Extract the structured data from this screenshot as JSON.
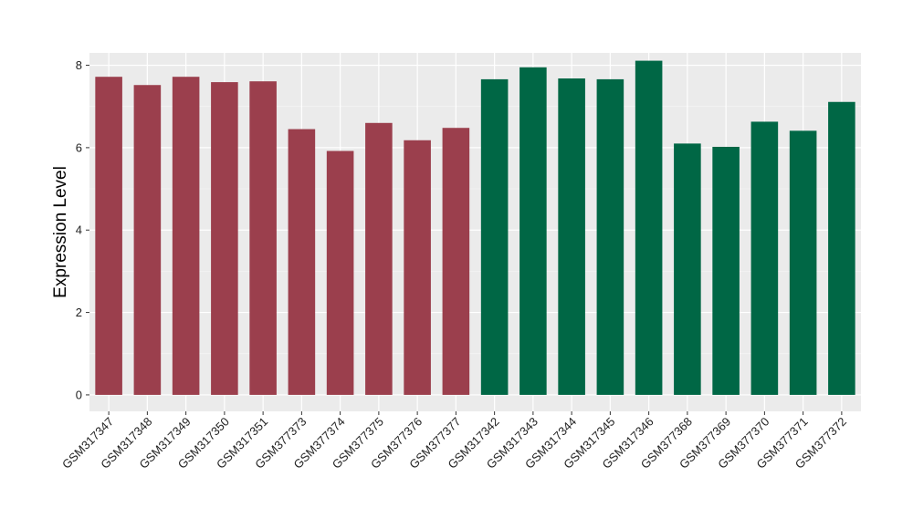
{
  "chart_data": {
    "type": "bar",
    "xlabel": "",
    "ylabel": "Expression Level",
    "ylim": [
      0,
      8.3
    ],
    "yticks": [
      0,
      2,
      4,
      6,
      8
    ],
    "grid": true,
    "panel_background": "#EBEBEB",
    "categories": [
      "GSM317347",
      "GSM317348",
      "GSM317349",
      "GSM317350",
      "GSM317351",
      "GSM377373",
      "GSM377374",
      "GSM377375",
      "GSM377376",
      "GSM377377",
      "GSM317342",
      "GSM317343",
      "GSM317344",
      "GSM317345",
      "GSM317346",
      "GSM377368",
      "GSM377369",
      "GSM377370",
      "GSM377371",
      "GSM377372"
    ],
    "values": [
      7.72,
      7.52,
      7.72,
      7.59,
      7.61,
      6.45,
      5.92,
      6.6,
      6.18,
      6.48,
      7.66,
      7.95,
      7.68,
      7.66,
      8.11,
      6.1,
      6.02,
      6.63,
      6.41,
      7.11
    ],
    "colors": [
      "#9B3F4D",
      "#9B3F4D",
      "#9B3F4D",
      "#9B3F4D",
      "#9B3F4D",
      "#9B3F4D",
      "#9B3F4D",
      "#9B3F4D",
      "#9B3F4D",
      "#9B3F4D",
      "#006745",
      "#006745",
      "#006745",
      "#006745",
      "#006745",
      "#006745",
      "#006745",
      "#006745",
      "#006745",
      "#006745"
    ]
  }
}
